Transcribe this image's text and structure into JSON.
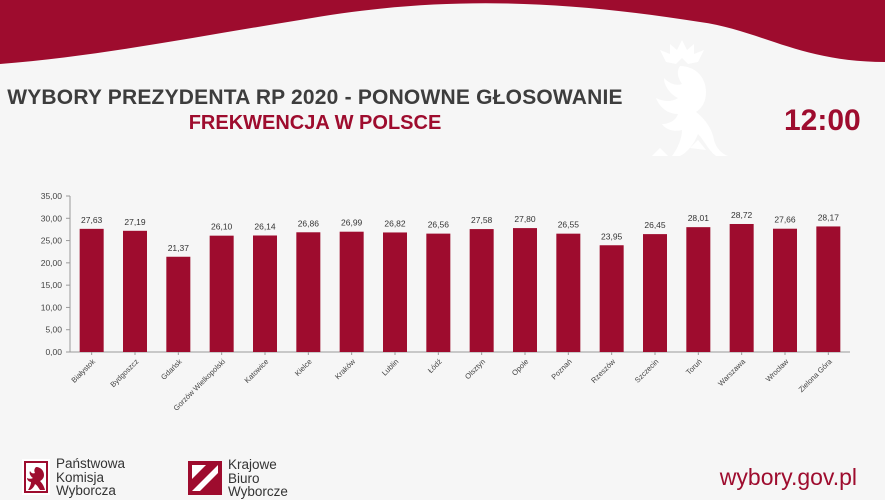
{
  "header": {
    "title": "WYBORY PREZYDENTA RP 2020 - PONOWNE GŁOSOWANIE",
    "subtitle": "FREKWENCJA W POLSCE",
    "time": "12:00"
  },
  "colors": {
    "brand_red": "#9e0c2e",
    "background": "#f6f6f6",
    "title_gray": "#3d3d3d"
  },
  "footer": {
    "pkw": [
      "Państwowa",
      "Komisja",
      "Wyborcza"
    ],
    "kbw": [
      "Krajowe",
      "Biuro",
      "Wyborcze"
    ],
    "website": "wybory.gov.pl"
  },
  "chart_data": {
    "type": "bar",
    "categories": [
      "Białystok",
      "Bydgoszcz",
      "Gdańsk",
      "Gorzów Wielkopolski",
      "Katowice",
      "Kielce",
      "Kraków",
      "Lublin",
      "Łódź",
      "Olsztyn",
      "Opole",
      "Poznań",
      "Rzeszów",
      "Szczecin",
      "Toruń",
      "Warszawa",
      "Wrocław",
      "Zielona Góra"
    ],
    "values": [
      27.63,
      27.19,
      21.37,
      26.1,
      26.14,
      26.86,
      26.99,
      26.82,
      26.56,
      27.58,
      27.8,
      26.55,
      23.95,
      26.45,
      28.01,
      28.72,
      27.66,
      28.17
    ],
    "value_labels": [
      "27,63",
      "27,19",
      "21,37",
      "26,10",
      "26,14",
      "26,86",
      "26,99",
      "26,82",
      "26,56",
      "27,58",
      "27,80",
      "26,55",
      "23,95",
      "26,45",
      "28,01",
      "28,72",
      "27,66",
      "28,17"
    ],
    "yticks": [
      0,
      5,
      10,
      15,
      20,
      25,
      30,
      35
    ],
    "ytick_labels": [
      "0,00",
      "5,00",
      "10,00",
      "15,00",
      "20,00",
      "25,00",
      "30,00",
      "35,00"
    ],
    "ylim": [
      0,
      35
    ],
    "grid": false,
    "legend": "none",
    "bar_color": "#9e0c2e"
  }
}
